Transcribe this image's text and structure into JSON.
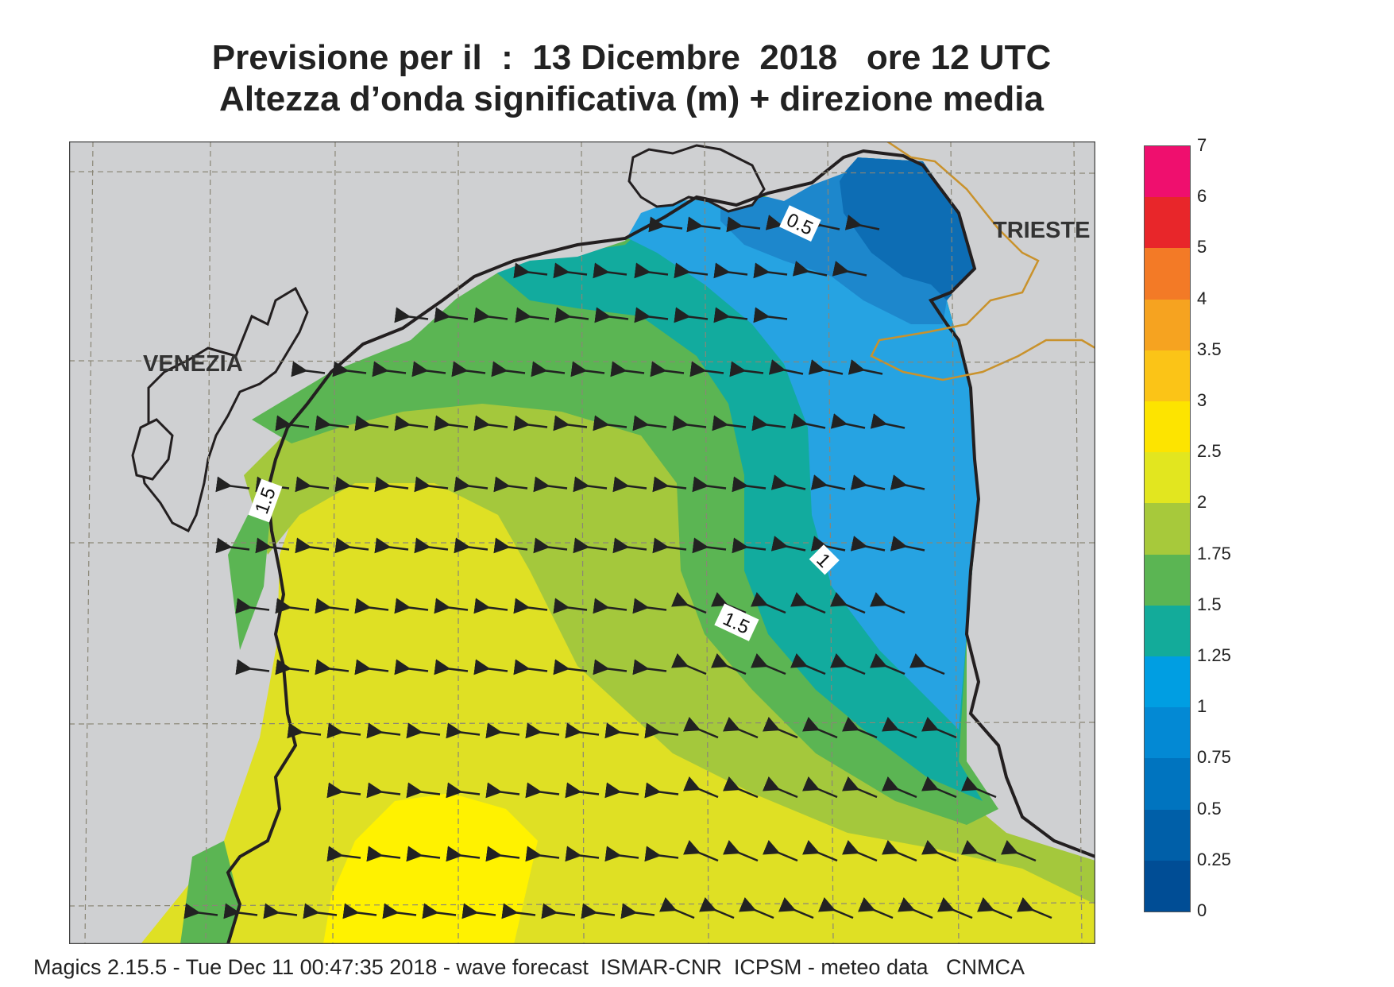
{
  "title": {
    "line1": "Previsione per il  :  13 Dicembre  2018   ore 12 UTC",
    "line2": "Altezza d’onda significativa (m) + direzione media"
  },
  "places": {
    "venezia": "VENEZIA",
    "trieste": "TRIESTE"
  },
  "contour_labels": [
    "0.5",
    "1",
    "1.5",
    "1.5"
  ],
  "legend": {
    "ticks": [
      "7",
      "6",
      "5",
      "4",
      "3.5",
      "3",
      "2.5",
      "2",
      "1.75",
      "1.5",
      "1.25",
      "1",
      "0.75",
      "0.5",
      "0.25",
      "0"
    ],
    "colors": [
      "#ef0f6e",
      "#e8262a",
      "#f37a26",
      "#f6a320",
      "#fbc417",
      "#fde400",
      "#e2e61f",
      "#a7c93b",
      "#5bb553",
      "#13ab9a",
      "#009ee2",
      "#0389d4",
      "#0074bf",
      "#005fa8",
      "#004d95"
    ]
  },
  "colors": {
    "land": "#cfd0d2",
    "coast": "#231f20",
    "border": "#c9922c",
    "sea_lt_0_5": "#0d6db4",
    "sea_0_5_0_75": "#1d87cc",
    "sea_0_75_1": "#26a3e2",
    "sea_1_1_25": "#12ab9e",
    "sea_1_25_1_5": "#5bb553",
    "sea_1_5_1_75": "#a4c83c",
    "sea_1_75_2": "#dfe024",
    "sea_2_2_5": "#fff200"
  },
  "footer": "Magics 2.15.5 - Tue Dec 11 00:47:35 2018 - wave forecast  ISMAR-CNR  ICPSM - meteo data   CNMCA"
}
